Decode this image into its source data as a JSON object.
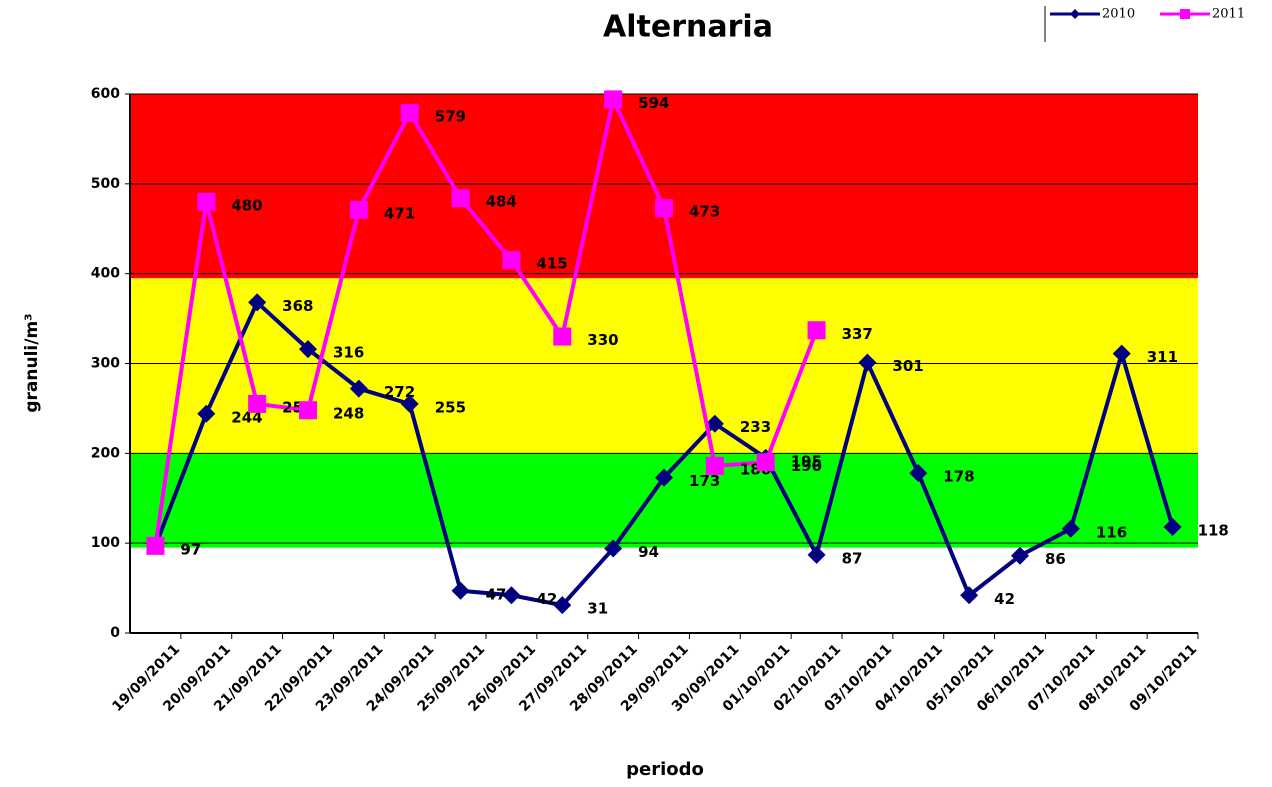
{
  "chart_data": {
    "type": "line",
    "title": "Alternaria",
    "x_label": "periodo",
    "y_label": "granuli/m³",
    "categories": [
      "19/09/2011",
      "20/09/2011",
      "21/09/2011",
      "22/09/2011",
      "23/09/2011",
      "24/09/2011",
      "25/09/2011",
      "26/09/2011",
      "27/09/2011",
      "28/09/2011",
      "29/09/2011",
      "30/09/2011",
      "01/10/2011",
      "02/10/2011",
      "03/10/2011",
      "04/10/2011",
      "05/10/2011",
      "06/10/2011",
      "07/10/2011",
      "08/10/2011",
      "09/10/2011"
    ],
    "series": [
      {
        "name": "2010",
        "color": "#000080",
        "marker": "diamond",
        "values": [
          97,
          244,
          368,
          316,
          272,
          255,
          47,
          42,
          31,
          94,
          173,
          233,
          195,
          87,
          301,
          178,
          42,
          86,
          116,
          311,
          118
        ]
      },
      {
        "name": "2011",
        "color": "#ff00ff",
        "marker": "square",
        "values": [
          97,
          480,
          255,
          248,
          471,
          579,
          484,
          415,
          330,
          594,
          473,
          186,
          190,
          337,
          null,
          null,
          null,
          null,
          null,
          null,
          null
        ]
      }
    ],
    "ylim": [
      0,
      600
    ],
    "yticks": [
      0,
      100,
      200,
      300,
      400,
      500,
      600
    ],
    "grid": true,
    "legend": "top-right",
    "bands": [
      {
        "from": 95,
        "to": 200,
        "color": "#00ff00"
      },
      {
        "from": 200,
        "to": 395,
        "color": "#ffff00"
      },
      {
        "from": 395,
        "to": 600,
        "color": "#ff0000"
      }
    ]
  }
}
